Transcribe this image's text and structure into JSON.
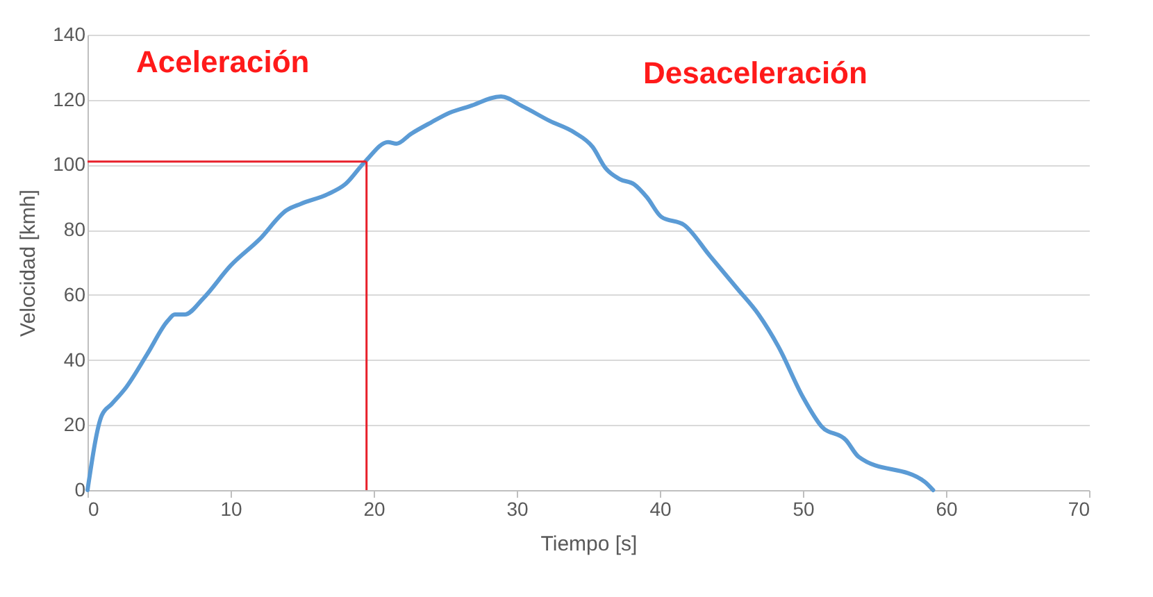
{
  "chart_data": {
    "type": "line",
    "xlabel": "Tiempo [s]",
    "ylabel": "Velocidad [kmh]",
    "annotations": [
      "Aceleración",
      "Desaceleración"
    ],
    "x": [
      0,
      1,
      1.7,
      2.7,
      4.2,
      5.6,
      6.1,
      6.8,
      8.1,
      10,
      12,
      13.9,
      14.9,
      16.8,
      18,
      19.4,
      21,
      21.6,
      22.6,
      24,
      25.3,
      26.7,
      28.9,
      30.4,
      32.3,
      34,
      35.3,
      36.2,
      37.2,
      38.2,
      39.1,
      40.1,
      41.7,
      43.5,
      45.4,
      46.9,
      48.3,
      50,
      51.3,
      53,
      53.9,
      58.5,
      59.1
    ],
    "series": [
      {
        "color": "#5b9bd5",
        "values": [
          0,
          23,
          26.5,
          31.6,
          42,
          52,
          54,
          54,
          59,
          69,
          77,
          86,
          88,
          91,
          94,
          101,
          107,
          106.5,
          109.5,
          113,
          116,
          118,
          121,
          118,
          113.5,
          110,
          105.5,
          99,
          95.6,
          94,
          90,
          84,
          81.5,
          72,
          62,
          54,
          44,
          28.6,
          19.6,
          15.4,
          10.2,
          2.6,
          0
        ]
      }
    ],
    "ref_lines": [
      {
        "axis": "x",
        "value": 19.5,
        "color": "#e8202a"
      },
      {
        "axis": "y",
        "value": 101,
        "color": "#e8202a"
      }
    ],
    "xlim": [
      0,
      70
    ],
    "xticks": [
      0,
      10,
      20,
      30,
      40,
      50,
      60,
      70
    ],
    "ylim": [
      0,
      140
    ],
    "yticks": [
      0,
      20,
      40,
      60,
      80,
      100,
      120,
      140
    ],
    "grid": "y",
    "line_style": "solid",
    "marker": "none"
  }
}
